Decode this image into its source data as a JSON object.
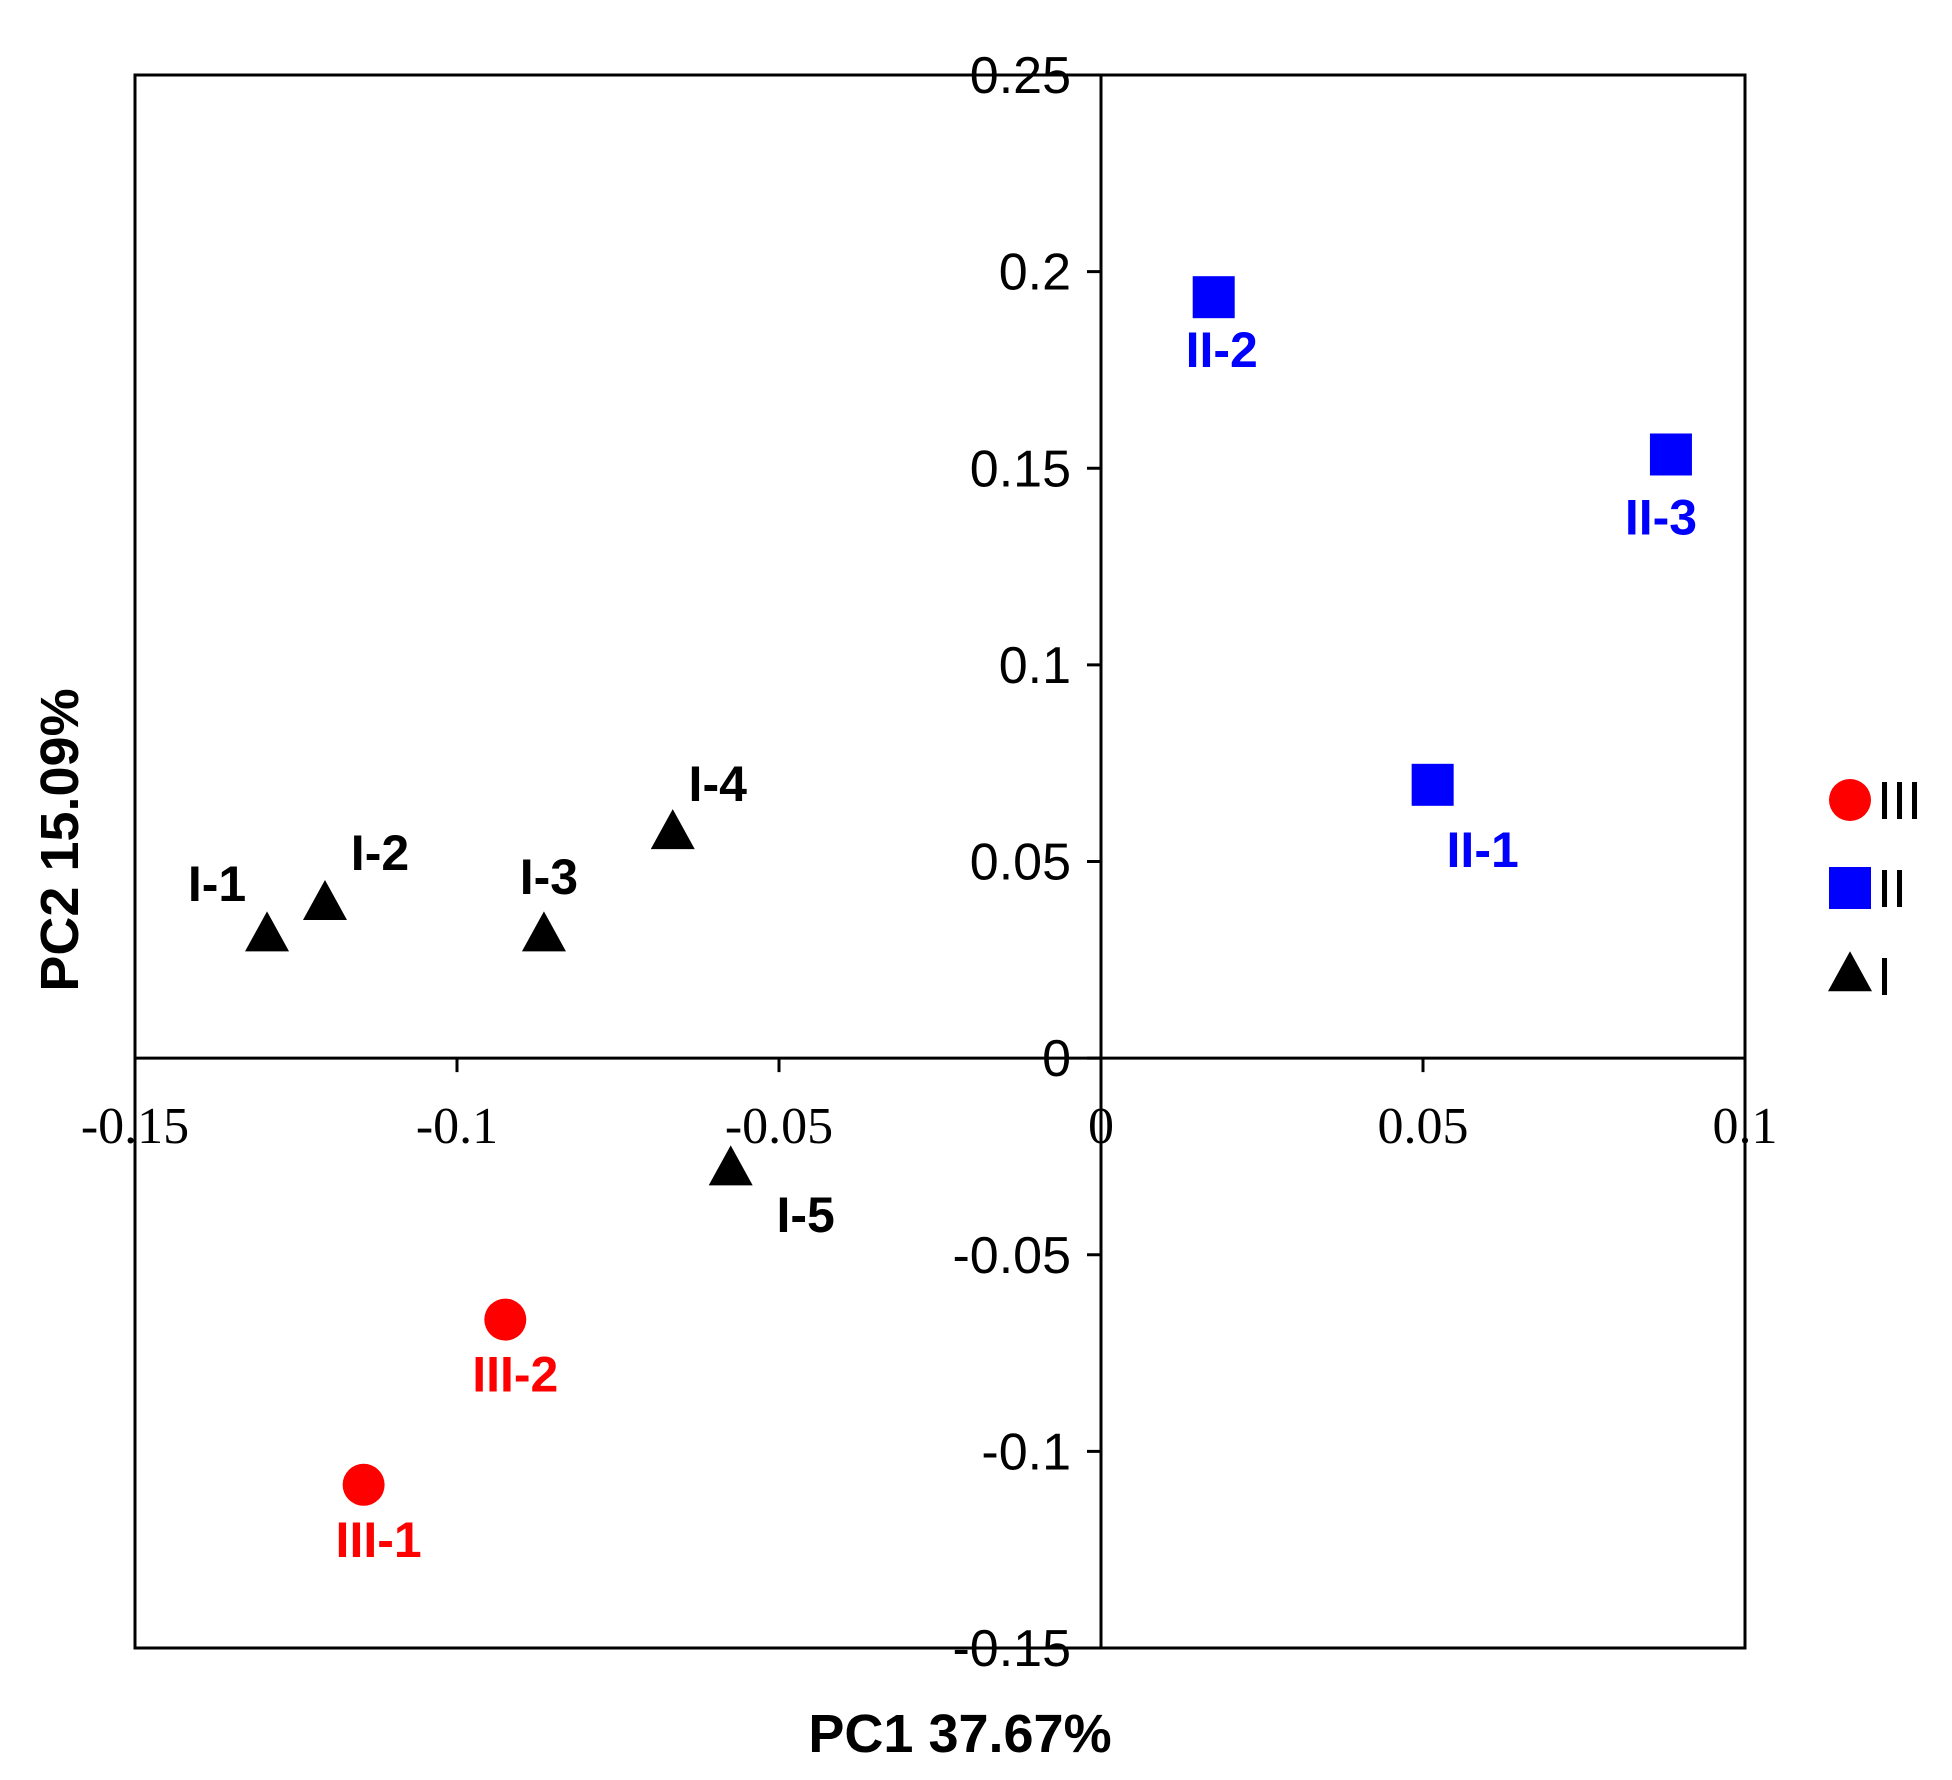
{
  "chart_data": {
    "type": "scatter",
    "xlabel": "PC1 37.67%",
    "ylabel": "PC2 15.09%",
    "xlim": [
      -0.15,
      0.1
    ],
    "ylim": [
      -0.15,
      0.25
    ],
    "xticks": [
      "-0.15",
      "-0.1",
      "-0.05",
      "0",
      "0.05",
      "0.1"
    ],
    "yticks": [
      "0.25",
      "0.2",
      "0.15",
      "0.1",
      "0.05",
      "0",
      "-0.05",
      "-0.1",
      "-0.15"
    ],
    "legend_position": "right",
    "series": [
      {
        "name": "III",
        "marker": "circle",
        "color": "#ff0000",
        "points": [
          {
            "label": "III-1",
            "x": -0.1145,
            "y": -0.1085
          },
          {
            "label": "III-2",
            "x": -0.0925,
            "y": -0.0665
          }
        ]
      },
      {
        "name": "II",
        "marker": "square",
        "color": "#0000ff",
        "points": [
          {
            "label": "II-1",
            "x": 0.0515,
            "y": 0.0695
          },
          {
            "label": "II-2",
            "x": 0.0175,
            "y": 0.1935
          },
          {
            "label": "II-3",
            "x": 0.0885,
            "y": 0.1535
          }
        ]
      },
      {
        "name": "I",
        "marker": "triangle",
        "color": "#000000",
        "points": [
          {
            "label": "I-1",
            "x": -0.1295,
            "y": 0.031
          },
          {
            "label": "I-2",
            "x": -0.1205,
            "y": 0.039
          },
          {
            "label": "I-3",
            "x": -0.0865,
            "y": 0.031
          },
          {
            "label": "I-4",
            "x": -0.0665,
            "y": 0.057
          },
          {
            "label": "I-5",
            "x": -0.0575,
            "y": -0.0285
          }
        ]
      }
    ]
  }
}
